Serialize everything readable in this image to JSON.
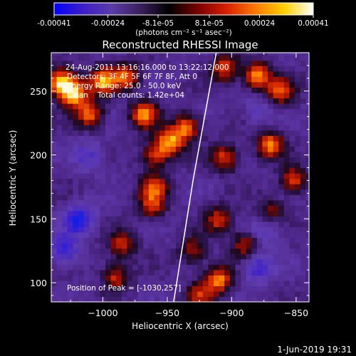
{
  "chart_data": {
    "type": "heatmap",
    "title": "Reconstructed RHESSI Image",
    "xlabel": "Heliocentric X (arcsec)",
    "ylabel": "Heliocentric Y (arcsec)",
    "xlim": [
      -1040,
      -840
    ],
    "ylim": [
      85,
      280
    ],
    "x_ticks": [
      -1000,
      -950,
      -900,
      -850
    ],
    "x_tick_labels": [
      "−1000",
      "−950",
      "−900",
      "−850"
    ],
    "y_ticks": [
      100,
      150,
      200,
      250
    ],
    "y_tick_labels": [
      "100",
      "150",
      "200",
      "250"
    ],
    "colorbar": {
      "range": [
        -0.00041,
        0.00041
      ],
      "ticks": [
        -0.00041,
        -0.00024,
        -8.1e-05,
        8.1e-05,
        0.00024,
        0.00041
      ],
      "tick_labels": [
        "-0.00041",
        "-0.00024",
        "-8.1e-05",
        "8.1e-05",
        "0.00024",
        "0.00041"
      ],
      "unit_label": "(photons cm⁻² s⁻¹ asec⁻²)",
      "colors": [
        "#0000ff",
        "#3e1ec8",
        "#5a3ca8",
        "#3a1f5e",
        "#000000",
        "#7a0000",
        "#d82000",
        "#ff7a00",
        "#ffd000",
        "#ffffff"
      ]
    },
    "annotations": [
      "24-Aug-2011 13:16:16.000 to 13:22:12.000",
      "Detectors: 3F 4F 5F 6F 7F 8F, Att 0",
      "Energy Range: 25.0 - 50.0 keV",
      "Clean    Total counts: 1.42e+04"
    ],
    "peak_label": "Position of Peak = [-1030,257]",
    "limb_line": [
      [
        -945,
        85
      ],
      [
        -930,
        180
      ],
      [
        -912,
        280
      ]
    ],
    "bright_regions": [
      {
        "x": -1032,
        "y": 257,
        "level": 1.0
      },
      {
        "x": -1022,
        "y": 248,
        "level": 0.85
      },
      {
        "x": -1010,
        "y": 232,
        "level": 0.7
      },
      {
        "x": -1000,
        "y": 258,
        "level": 0.8
      },
      {
        "x": -968,
        "y": 232,
        "level": 0.75
      },
      {
        "x": -948,
        "y": 210,
        "level": 0.8
      },
      {
        "x": -935,
        "y": 222,
        "level": 0.7
      },
      {
        "x": -960,
        "y": 200,
        "level": 0.55
      },
      {
        "x": -982,
        "y": 262,
        "level": 0.65
      },
      {
        "x": -905,
        "y": 268,
        "level": 0.6
      },
      {
        "x": -880,
        "y": 262,
        "level": 0.8
      },
      {
        "x": -862,
        "y": 250,
        "level": 0.65
      },
      {
        "x": -870,
        "y": 208,
        "level": 0.75
      },
      {
        "x": -852,
        "y": 180,
        "level": 0.6
      },
      {
        "x": -905,
        "y": 198,
        "level": 0.6
      },
      {
        "x": -910,
        "y": 150,
        "level": 0.55
      },
      {
        "x": -890,
        "y": 130,
        "level": 0.5
      },
      {
        "x": -960,
        "y": 175,
        "level": 0.6
      },
      {
        "x": -962,
        "y": 160,
        "level": 0.5
      },
      {
        "x": -985,
        "y": 130,
        "level": 0.55
      },
      {
        "x": -990,
        "y": 105,
        "level": 0.55
      },
      {
        "x": -910,
        "y": 103,
        "level": 0.75
      },
      {
        "x": -925,
        "y": 90,
        "level": 0.5
      },
      {
        "x": -930,
        "y": 125,
        "level": 0.45
      },
      {
        "x": -870,
        "y": 155,
        "level": 0.45
      }
    ],
    "dark_regions": [
      {
        "x": -1018,
        "y": 150,
        "level": 0.9
      },
      {
        "x": -1030,
        "y": 125,
        "level": 0.7
      },
      {
        "x": -880,
        "y": 112,
        "level": 0.7
      },
      {
        "x": -872,
        "y": 143,
        "level": 0.55
      },
      {
        "x": -1010,
        "y": 200,
        "level": 0.5
      },
      {
        "x": -880,
        "y": 235,
        "level": 0.4
      }
    ]
  },
  "footer": {
    "date": "1-Jun-2019 19:31"
  }
}
